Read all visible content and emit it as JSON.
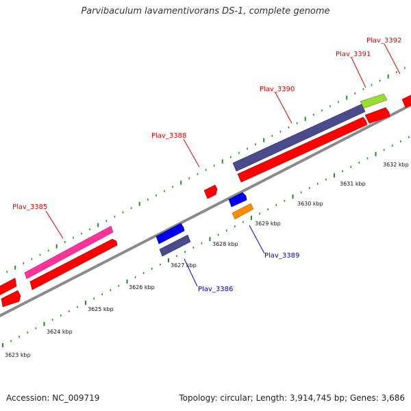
{
  "title": "Parvibaculum lavamentivorans DS-1, complete genome",
  "footer": {
    "accession": "Accession: NC_009719",
    "summary": "Topology: circular; Length: 3,914,745 bp; Genes: 3,686"
  },
  "scale_labels": [
    "3623 kbp",
    "3624 kbp",
    "3625 kbp",
    "3626 kbp",
    "3627 kbp",
    "3628 kbp",
    "3629 kbp",
    "3630 kbp",
    "3631 kbp",
    "3632 kbp"
  ],
  "gene_labels": {
    "plav_3385": "Plav_3385",
    "plav_3386": "Plav_3386",
    "plav_3388": "Plav_3388",
    "plav_3389": "Plav_3389",
    "plav_3390": "Plav_3390",
    "plav_3391": "Plav_3391",
    "plav_3392": "Plav_3392"
  },
  "colors": {
    "backbone": "#8a8a8a",
    "tick": "#2a8a2a",
    "label_red": "#dd0000",
    "label_blue": "#0000cc",
    "cds_red": "#ff0000",
    "cds_magenta": "#ff3399",
    "cds_slate": "#4a4a8c",
    "cds_blue": "#0000ee",
    "cds_orange": "#ff8c00",
    "cds_lime": "#99dd33"
  }
}
